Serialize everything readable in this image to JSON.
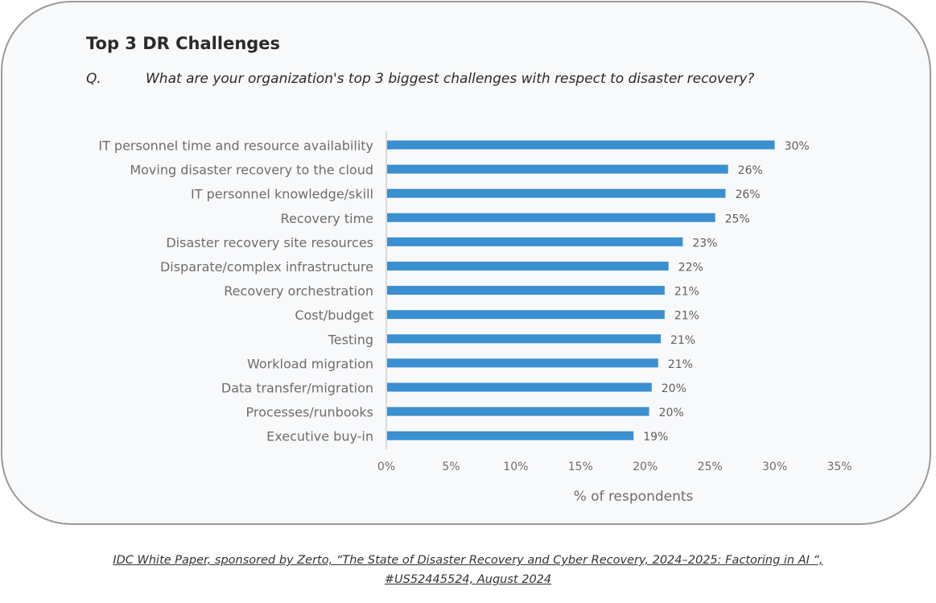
{
  "title": "Top 3 DR Challenges",
  "question_prefix": "Q.",
  "question": "What are your organization's top 3 biggest challenges with respect to disaster recovery?",
  "source_line1": "IDC White Paper, sponsored by Zerto, “The State of Disaster Recovery and Cyber Recovery, 2024–2025: Factoring in AI “,",
  "source_line2": "#US52445524, August 2024",
  "colors": {
    "bar": "#3a8fd0",
    "axis": "#cfcfcf",
    "card_border": "#9a9a9a"
  },
  "chart_data": {
    "type": "bar",
    "orientation": "horizontal",
    "categories": [
      "IT personnel time and resource availability",
      "Moving disaster recovery to the cloud",
      "IT personnel knowledge/skill",
      "Recovery time",
      "Disaster recovery site resources",
      "Disparate/complex infrastructure",
      "Recovery orchestration",
      "Cost/budget",
      "Testing",
      "Workload migration",
      "Data transfer/migration",
      "Processes/runbooks",
      "Executive buy-in"
    ],
    "values": [
      30,
      26,
      26,
      25,
      23,
      22,
      21,
      21,
      21,
      21,
      20,
      20,
      19
    ],
    "value_labels": [
      "30%",
      "26%",
      "26%",
      "25%",
      "23%",
      "22%",
      "21%",
      "21%",
      "21%",
      "21%",
      "20%",
      "20%",
      "19%"
    ],
    "bar_values": [
      30,
      26.4,
      26.2,
      25.4,
      22.9,
      21.8,
      21.5,
      21.5,
      21.2,
      21.0,
      20.5,
      20.3,
      19.1
    ],
    "xlim": [
      0,
      35
    ],
    "xticks": [
      0,
      5,
      10,
      15,
      20,
      25,
      30,
      35
    ],
    "xtick_labels": [
      "0%",
      "5%",
      "10%",
      "15%",
      "20%",
      "25%",
      "30%",
      "35%"
    ],
    "xlabel": "% of respondents",
    "grid": false,
    "legend": "none"
  }
}
